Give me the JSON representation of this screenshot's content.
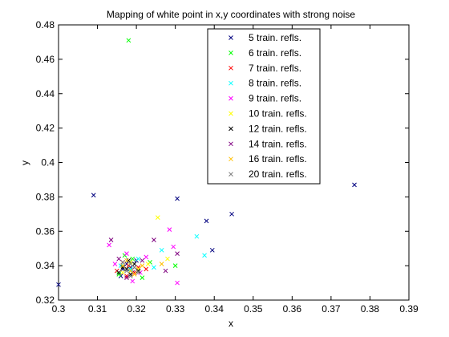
{
  "chart_data": {
    "type": "scatter",
    "title": "Mapping of white point in x,y coordinates with strong noise",
    "xlabel": "x",
    "ylabel": "y",
    "xlim": [
      0.3,
      0.39
    ],
    "ylim": [
      0.32,
      0.48
    ],
    "xticks": [
      "0.3",
      "0.31",
      "0.32",
      "0.33",
      "0.34",
      "0.35",
      "0.36",
      "0.37",
      "0.38",
      "0.39"
    ],
    "yticks": [
      "0.32",
      "0.34",
      "0.36",
      "0.38",
      "0.4",
      "0.42",
      "0.44",
      "0.46",
      "0.48"
    ],
    "grid": false,
    "legend_position": "top-right",
    "marker": "x",
    "series": [
      {
        "name": "5 train. refls.",
        "color": "#00007f",
        "points": [
          [
            0.3,
            0.329
          ],
          [
            0.309,
            0.381
          ],
          [
            0.3305,
            0.379
          ],
          [
            0.376,
            0.387
          ],
          [
            0.3445,
            0.37
          ],
          [
            0.338,
            0.366
          ],
          [
            0.3395,
            0.349
          ],
          [
            0.3185,
            0.339
          ],
          [
            0.3175,
            0.341
          ],
          [
            0.319,
            0.336
          ],
          [
            0.3165,
            0.338
          ],
          [
            0.32,
            0.343
          ],
          [
            0.316,
            0.334
          ]
        ]
      },
      {
        "name": "6 train. refls.",
        "color": "#00ff00",
        "points": [
          [
            0.318,
            0.471
          ],
          [
            0.3185,
            0.337
          ],
          [
            0.319,
            0.344
          ],
          [
            0.3155,
            0.335
          ],
          [
            0.3235,
            0.342
          ],
          [
            0.33,
            0.34
          ],
          [
            0.3215,
            0.333
          ],
          [
            0.317,
            0.346
          ]
        ]
      },
      {
        "name": "7 train. refls.",
        "color": "#ff0000",
        "points": [
          [
            0.318,
            0.34
          ],
          [
            0.3195,
            0.336
          ],
          [
            0.3165,
            0.342
          ],
          [
            0.3205,
            0.339
          ],
          [
            0.3175,
            0.334
          ],
          [
            0.3225,
            0.338
          ],
          [
            0.315,
            0.337
          ]
        ]
      },
      {
        "name": "8 train. refls.",
        "color": "#00ffff",
        "points": [
          [
            0.3355,
            0.357
          ],
          [
            0.3375,
            0.346
          ],
          [
            0.3265,
            0.349
          ],
          [
            0.3185,
            0.338
          ],
          [
            0.3205,
            0.344
          ],
          [
            0.316,
            0.34
          ],
          [
            0.3245,
            0.339
          ]
        ]
      },
      {
        "name": "9 train. refls.",
        "color": "#ff00ff",
        "points": [
          [
            0.313,
            0.352
          ],
          [
            0.3295,
            0.351
          ],
          [
            0.3285,
            0.361
          ],
          [
            0.3305,
            0.33
          ],
          [
            0.3175,
            0.347
          ],
          [
            0.321,
            0.336
          ],
          [
            0.3145,
            0.341
          ],
          [
            0.3225,
            0.345
          ],
          [
            0.319,
            0.331
          ]
        ]
      },
      {
        "name": "10 train. refls.",
        "color": "#ffff00",
        "points": [
          [
            0.3255,
            0.368
          ],
          [
            0.3185,
            0.342
          ],
          [
            0.323,
            0.341
          ],
          [
            0.3165,
            0.336
          ],
          [
            0.3205,
            0.338
          ],
          [
            0.328,
            0.344
          ]
        ]
      },
      {
        "name": "12 train. refls.",
        "color": "#000000",
        "points": [
          [
            0.3175,
            0.338
          ],
          [
            0.3185,
            0.335
          ],
          [
            0.3195,
            0.341
          ],
          [
            0.3165,
            0.339
          ],
          [
            0.3205,
            0.337
          ],
          [
            0.318,
            0.343
          ],
          [
            0.3155,
            0.336
          ]
        ]
      },
      {
        "name": "14 train. refls.",
        "color": "#7f007f",
        "points": [
          [
            0.3135,
            0.355
          ],
          [
            0.3305,
            0.347
          ],
          [
            0.3175,
            0.333
          ],
          [
            0.3215,
            0.343
          ],
          [
            0.3245,
            0.355
          ],
          [
            0.3155,
            0.344
          ],
          [
            0.3195,
            0.339
          ],
          [
            0.3275,
            0.337
          ]
        ]
      },
      {
        "name": "16 train. refls.",
        "color": "#ffbf00",
        "points": [
          [
            0.3175,
            0.343
          ],
          [
            0.3195,
            0.335
          ],
          [
            0.3165,
            0.34
          ],
          [
            0.3215,
            0.34
          ],
          [
            0.3185,
            0.337
          ],
          [
            0.3265,
            0.341
          ]
        ]
      },
      {
        "name": "20 train. refls.",
        "color": "#7f7f7f",
        "points": [
          [
            0.3185,
            0.341
          ],
          [
            0.3175,
            0.337
          ],
          [
            0.3195,
            0.339
          ],
          [
            0.3165,
            0.342
          ],
          [
            0.3205,
            0.336
          ],
          [
            0.3185,
            0.334
          ]
        ]
      }
    ]
  }
}
